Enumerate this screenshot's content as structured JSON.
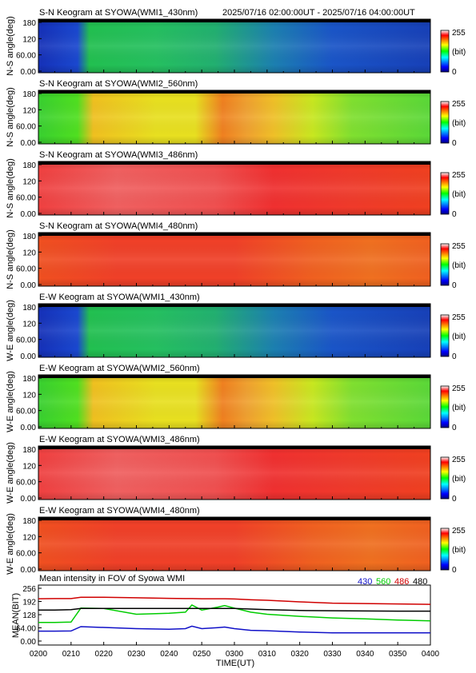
{
  "header": {
    "time_range": "2025/07/16 02:00:00UT - 2025/07/16 04:00:00UT"
  },
  "colorbar": {
    "max_label": "255",
    "unit_label": "(bit)",
    "min_label": "0"
  },
  "ns_ylabel": "N-S angle(deg)",
  "ew_ylabel": "W-E angle(deg)",
  "keogram_yticks": [
    "180",
    "120",
    "60.00",
    "0.00"
  ],
  "keograms": [
    {
      "title": "S-N Keogram at SYOWA(WMI1_430nm)",
      "channel": "430"
    },
    {
      "title": "S-N Keogram at SYOWA(WMI2_560nm)",
      "channel": "560"
    },
    {
      "title": "S-N Keogram at SYOWA(WMI3_486nm)",
      "channel": "486"
    },
    {
      "title": "S-N Keogram at SYOWA(WMI4_480nm)",
      "channel": "480"
    },
    {
      "title": "E-W Keogram at SYOWA(WMI1_430nm)",
      "channel": "430"
    },
    {
      "title": "E-W Keogram at SYOWA(WMI2_560nm)",
      "channel": "560"
    },
    {
      "title": "E-W Keogram at SYOWA(WMI3_486nm)",
      "channel": "486"
    },
    {
      "title": "E-W Keogram at SYOWA(WMI4_480nm)",
      "channel": "480"
    }
  ],
  "chart_data": {
    "type": "line",
    "title": "Mean intensity in FOV of Syowa WMI",
    "xlabel": "TIME(UT)",
    "ylabel": "MEAN(BIT)",
    "x_ticks": [
      "0200",
      "0210",
      "0220",
      "0230",
      "0240",
      "0250",
      "0300",
      "0310",
      "0320",
      "0330",
      "0340",
      "0350",
      "0400"
    ],
    "y_ticks": [
      "256",
      "192",
      "128",
      "64.00",
      "0.00"
    ],
    "xlim": [
      0,
      120
    ],
    "ylim": [
      0,
      256
    ],
    "x": [
      0,
      5,
      10,
      13,
      20,
      30,
      40,
      45,
      47,
      50,
      55,
      57,
      60,
      65,
      70,
      80,
      90,
      100,
      110,
      120
    ],
    "series": [
      {
        "name": "430",
        "color": "#1010c8",
        "values": [
          48,
          48,
          49,
          70,
          66,
          60,
          57,
          60,
          72,
          60,
          65,
          68,
          60,
          52,
          50,
          44,
          40,
          40,
          40,
          40
        ]
      },
      {
        "name": "560",
        "color": "#00cc00",
        "values": [
          90,
          90,
          92,
          160,
          158,
          130,
          135,
          140,
          175,
          150,
          165,
          172,
          160,
          140,
          130,
          120,
          112,
          108,
          102,
          98
        ]
      },
      {
        "name": "486",
        "color": "#d00000",
        "values": [
          205,
          206,
          206,
          212,
          212,
          210,
          207,
          206,
          206,
          205,
          205,
          205,
          204,
          200,
          198,
          190,
          184,
          182,
          180,
          178
        ]
      },
      {
        "name": "480",
        "color": "#000000",
        "values": [
          150,
          150,
          152,
          158,
          158,
          158,
          158,
          158,
          158,
          158,
          158,
          158,
          158,
          155,
          152,
          148,
          147,
          146,
          145,
          145
        ]
      }
    ]
  }
}
